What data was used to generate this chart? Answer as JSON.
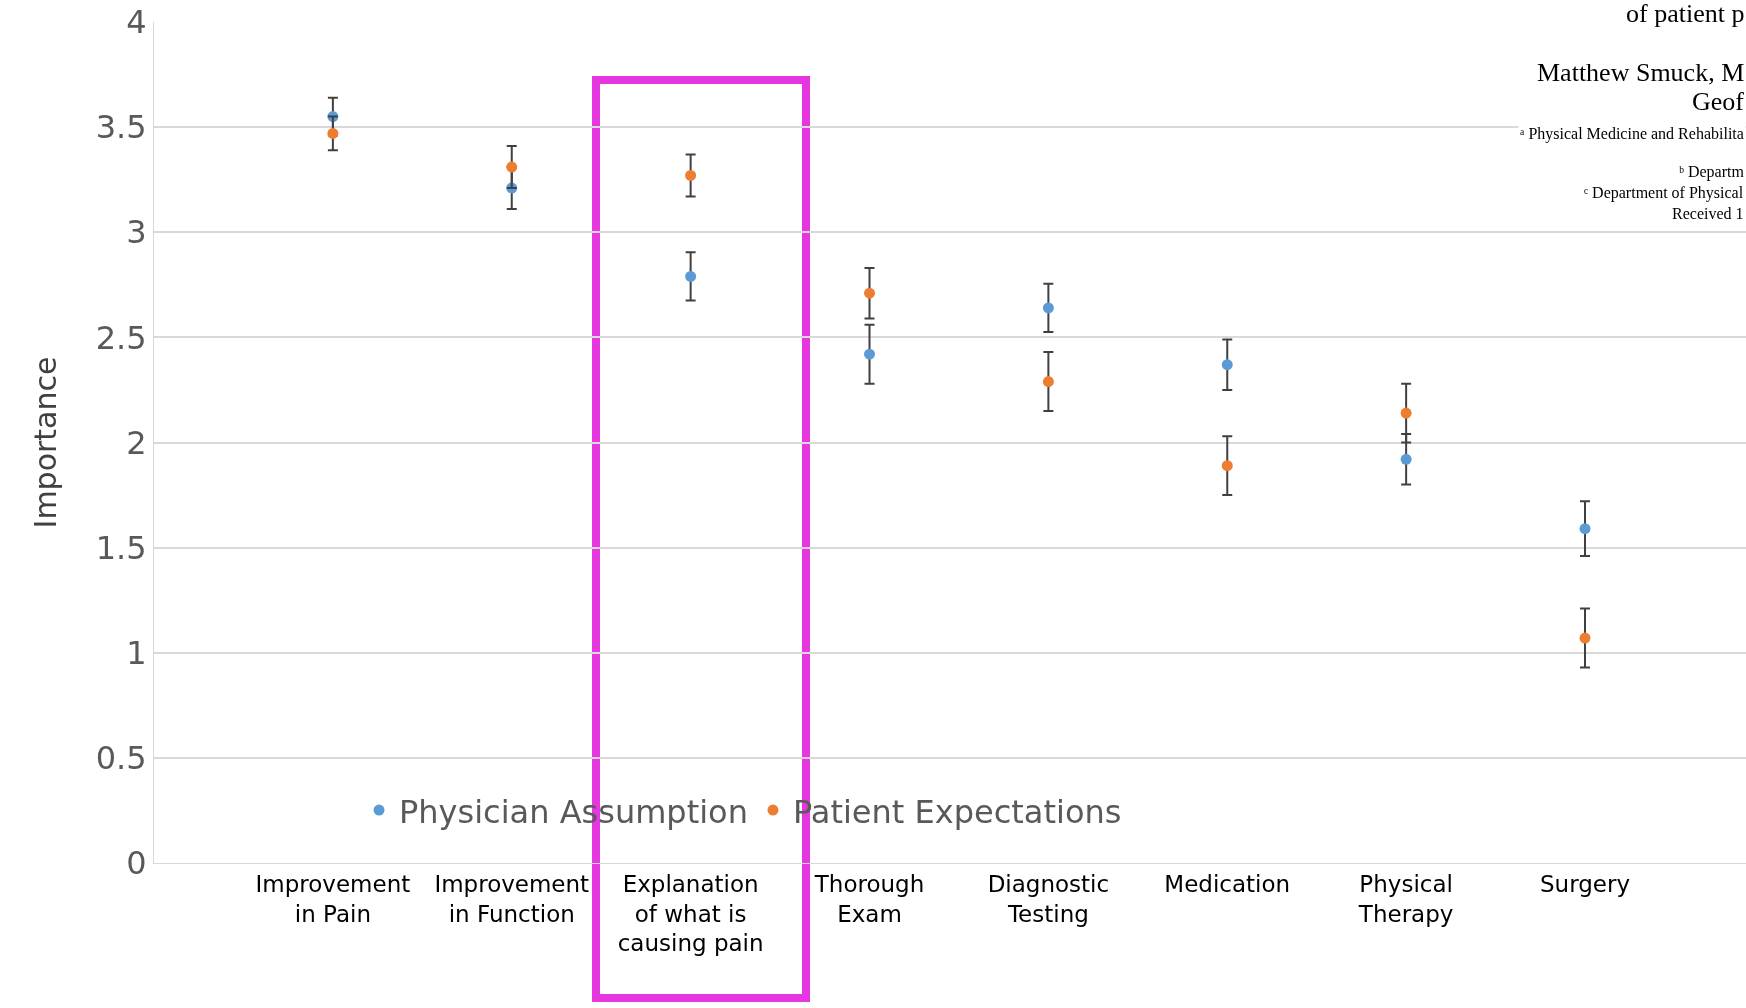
{
  "chart_data": {
    "type": "scatter",
    "ylabel": "Importance",
    "categories": [
      "Improvement in Pain",
      "Improvement in Function",
      "Explanation of what is causing pain",
      "Thorough Exam",
      "Diagnostic Testing",
      "Medication",
      "Physical Therapy",
      "Surgery"
    ],
    "series": [
      {
        "name": "Physician Assumption",
        "color": "#5b9bd5",
        "values": [
          3.55,
          3.21,
          2.79,
          2.42,
          2.64,
          2.37,
          1.92,
          1.59
        ],
        "errors": [
          0.09,
          0.1,
          0.115,
          0.14,
          0.115,
          0.12,
          0.12,
          0.13
        ]
      },
      {
        "name": "Patient Expectations",
        "color": "#ed7d31",
        "values": [
          3.47,
          3.31,
          3.27,
          2.71,
          2.29,
          1.89,
          2.14,
          1.07
        ],
        "errors": [
          0.08,
          0.1,
          0.1,
          0.12,
          0.14,
          0.14,
          0.14,
          0.14
        ]
      }
    ],
    "ylim": [
      0,
      4
    ],
    "yticks": [
      0,
      0.5,
      1,
      1.5,
      2,
      2.5,
      3,
      3.5,
      4
    ],
    "grid": "y",
    "legend": "bottom",
    "marker": "circle",
    "annotations": [
      "of patient p",
      "Matthew Smuck, M",
      "Geof",
      "ᵃ Physical Medicine and Rehabilita",
      "ᵇ Departm",
      "ᶜ Department of Physical",
      "Received 1"
    ]
  }
}
